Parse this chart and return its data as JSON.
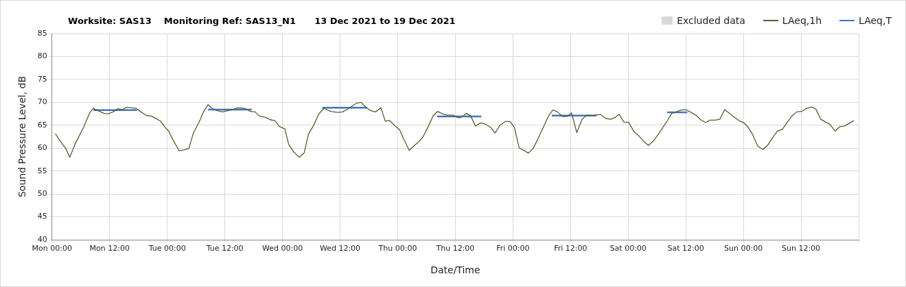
{
  "chart_data": {
    "type": "line",
    "title": "Worksite: SAS13    Monitoring Ref: SAS13_N1      13 Dec 2021 to 19 Dec 2021",
    "xlabel": "Date/Time",
    "ylabel": "Sound Pressure Level, dB",
    "xlim": [
      "2021-12-13T00:00",
      "2021-12-20T00:00"
    ],
    "ylim": [
      40,
      85
    ],
    "xticks": [
      {
        "value": "2021-12-13T00:00",
        "label": "Mon 00:00"
      },
      {
        "value": "2021-12-13T12:00",
        "label": "Mon 12:00"
      },
      {
        "value": "2021-12-14T00:00",
        "label": "Tue 00:00"
      },
      {
        "value": "2021-12-14T12:00",
        "label": "Tue 12:00"
      },
      {
        "value": "2021-12-15T00:00",
        "label": "Wed 00:00"
      },
      {
        "value": "2021-12-15T12:00",
        "label": "Wed 12:00"
      },
      {
        "value": "2021-12-16T00:00",
        "label": "Thu 00:00"
      },
      {
        "value": "2021-12-16T12:00",
        "label": "Thu 12:00"
      },
      {
        "value": "2021-12-17T00:00",
        "label": "Fri 00:00"
      },
      {
        "value": "2021-12-17T12:00",
        "label": "Fri 12:00"
      },
      {
        "value": "2021-12-18T00:00",
        "label": "Sat 00:00"
      },
      {
        "value": "2021-12-18T12:00",
        "label": "Sat 12:00"
      },
      {
        "value": "2021-12-19T00:00",
        "label": "Sun 00:00"
      },
      {
        "value": "2021-12-19T12:00",
        "label": "Sun 12:00"
      },
      {
        "value": "2021-12-20T00:00",
        "label": null
      }
    ],
    "yticks": [
      40,
      45,
      50,
      55,
      60,
      65,
      70,
      75,
      80,
      85
    ],
    "grid": true,
    "legend": "top right",
    "marker": "none",
    "line_style": "solid",
    "series": [
      {
        "name": "Excluded data",
        "type": "area",
        "color": "#d9d9d9"
      },
      {
        "name": "LAeq,1h",
        "color": "#4f6228",
        "x": [
          "2021-12-13T00:42",
          "2021-12-13T01:48",
          "2021-12-13T02:48",
          "2021-12-13T03:42",
          "2021-12-13T04:54",
          "2021-12-13T06:36",
          "2021-12-13T07:48",
          "2021-12-13T08:36",
          "2021-12-13T09:30",
          "2021-12-13T10:48",
          "2021-12-13T11:42",
          "2021-12-13T12:42",
          "2021-12-13T13:42",
          "2021-12-13T14:36",
          "2021-12-13T15:36",
          "2021-12-13T17:30",
          "2021-12-13T18:30",
          "2021-12-13T19:42",
          "2021-12-13T20:42",
          "2021-12-13T21:42",
          "2021-12-13T22:36",
          "2021-12-13T23:36",
          "2021-12-14T00:18",
          "2021-12-14T01:24",
          "2021-12-14T02:30",
          "2021-12-14T03:30",
          "2021-12-14T04:30",
          "2021-12-14T05:24",
          "2021-12-14T06:36",
          "2021-12-14T07:36",
          "2021-12-14T08:30",
          "2021-12-14T09:18",
          "2021-12-14T10:18",
          "2021-12-14T11:30",
          "2021-12-14T12:42",
          "2021-12-14T13:42",
          "2021-12-14T14:36",
          "2021-12-14T16:06",
          "2021-12-14T17:18",
          "2021-12-14T18:18",
          "2021-12-14T19:12",
          "2021-12-14T20:30",
          "2021-12-14T21:24",
          "2021-12-14T22:24",
          "2021-12-14T23:24",
          "2021-12-15T00:30",
          "2021-12-15T01:18",
          "2021-12-15T02:18",
          "2021-12-15T03:30",
          "2021-12-15T04:30",
          "2021-12-15T05:24",
          "2021-12-15T06:24",
          "2021-12-15T07:36",
          "2021-12-15T08:36",
          "2021-12-15T10:00",
          "2021-12-15T11:30",
          "2021-12-15T12:30",
          "2021-12-15T13:42",
          "2021-12-15T15:24",
          "2021-12-15T16:24",
          "2021-12-15T17:18",
          "2021-12-15T18:18",
          "2021-12-15T19:24",
          "2021-12-15T20:30",
          "2021-12-15T21:24",
          "2021-12-15T22:18",
          "2021-12-15T23:24",
          "2021-12-16T00:24",
          "2021-12-16T01:24",
          "2021-12-16T02:24",
          "2021-12-16T03:30",
          "2021-12-16T04:30",
          "2021-12-16T05:18",
          "2021-12-16T06:24",
          "2021-12-16T07:24",
          "2021-12-16T08:18",
          "2021-12-16T09:18",
          "2021-12-16T10:18",
          "2021-12-16T11:30",
          "2021-12-16T12:42",
          "2021-12-16T13:24",
          "2021-12-16T14:18",
          "2021-12-16T15:12",
          "2021-12-16T16:12",
          "2021-12-16T17:12",
          "2021-12-16T18:06",
          "2021-12-16T19:18",
          "2021-12-16T20:18",
          "2021-12-16T21:18",
          "2021-12-16T22:24",
          "2021-12-16T23:24",
          "2021-12-17T00:18",
          "2021-12-17T01:18",
          "2021-12-17T02:18",
          "2021-12-17T03:12",
          "2021-12-17T04:12",
          "2021-12-17T05:12",
          "2021-12-17T06:24",
          "2021-12-17T07:24",
          "2021-12-17T08:18",
          "2021-12-17T09:18",
          "2021-12-17T10:18",
          "2021-12-17T11:18",
          "2021-12-17T12:12",
          "2021-12-17T13:18",
          "2021-12-17T14:24",
          "2021-12-17T15:24",
          "2021-12-17T16:36",
          "2021-12-17T17:42",
          "2021-12-17T18:18",
          "2021-12-17T19:18",
          "2021-12-17T20:24",
          "2021-12-17T21:18",
          "2021-12-17T22:06",
          "2021-12-17T23:06",
          "2021-12-18T00:06",
          "2021-12-18T01:12",
          "2021-12-18T02:18",
          "2021-12-18T03:12",
          "2021-12-18T04:12",
          "2021-12-18T05:12",
          "2021-12-18T06:12",
          "2021-12-18T07:06",
          "2021-12-18T08:06",
          "2021-12-18T09:06",
          "2021-12-18T10:00",
          "2021-12-18T11:00",
          "2021-12-18T12:00",
          "2021-12-18T12:54",
          "2021-12-18T14:06",
          "2021-12-18T15:06",
          "2021-12-18T16:06",
          "2021-12-18T17:06",
          "2021-12-18T18:06",
          "2021-12-18T19:06",
          "2021-12-18T20:06",
          "2021-12-18T21:12",
          "2021-12-18T22:12",
          "2021-12-18T23:06",
          "2021-12-19T00:06",
          "2021-12-19T00:54",
          "2021-12-19T01:48",
          "2021-12-19T03:00",
          "2021-12-19T04:06",
          "2021-12-19T05:06",
          "2021-12-19T06:06",
          "2021-12-19T07:06",
          "2021-12-19T08:06",
          "2021-12-19T09:06",
          "2021-12-19T10:06",
          "2021-12-19T11:06",
          "2021-12-19T12:06",
          "2021-12-19T13:00",
          "2021-12-19T14:12",
          "2021-12-19T15:06",
          "2021-12-19T16:06",
          "2021-12-19T17:06",
          "2021-12-19T18:00",
          "2021-12-19T19:06",
          "2021-12-19T20:06",
          "2021-12-19T21:00",
          "2021-12-19T22:00",
          "2021-12-19T23:00"
        ],
        "values": [
          63.1,
          61.4,
          60.0,
          58.0,
          61.1,
          64.6,
          67.6,
          68.7,
          68.2,
          67.6,
          67.5,
          67.9,
          68.6,
          68.4,
          68.9,
          68.7,
          67.9,
          67.1,
          67.0,
          66.4,
          65.9,
          64.5,
          63.7,
          61.4,
          59.4,
          59.6,
          59.9,
          63.2,
          65.6,
          68.0,
          69.5,
          68.7,
          68.2,
          67.9,
          68.2,
          68.4,
          68.8,
          68.7,
          68.0,
          67.9,
          67.0,
          66.7,
          66.2,
          66.0,
          64.7,
          64.2,
          60.8,
          59.2,
          58.0,
          58.9,
          63.0,
          64.8,
          67.5,
          68.7,
          68.0,
          67.8,
          67.9,
          68.6,
          69.8,
          70.0,
          69.0,
          68.2,
          67.9,
          68.8,
          65.9,
          66.0,
          64.9,
          64.0,
          61.6,
          59.5,
          60.6,
          61.5,
          62.5,
          64.8,
          67.1,
          68.0,
          67.5,
          67.2,
          67.2,
          66.6,
          66.8,
          67.6,
          67.0,
          64.8,
          65.5,
          65.3,
          64.6,
          63.3,
          65.0,
          65.8,
          65.8,
          64.5,
          60.0,
          59.5,
          58.9,
          59.9,
          62.0,
          64.7,
          67.0,
          68.3,
          67.9,
          66.9,
          66.9,
          67.7,
          63.4,
          66.3,
          67.2,
          67.1,
          67.3,
          67.3,
          66.5,
          66.3,
          66.7,
          67.4,
          65.7,
          65.6,
          63.6,
          62.6,
          61.5,
          60.6,
          61.5,
          62.9,
          64.3,
          65.9,
          67.6,
          67.9,
          68.3,
          68.4,
          67.9,
          67.2,
          66.2,
          65.6,
          66.1,
          66.1,
          66.3,
          68.4,
          67.5,
          66.7,
          66.0,
          65.5,
          64.7,
          63.2,
          60.4,
          59.7,
          60.7,
          62.3,
          63.7,
          64.1,
          65.6,
          67.0,
          67.9,
          68.0,
          68.6,
          69.0,
          68.5,
          66.3,
          65.7,
          65.2,
          63.7,
          64.7,
          64.8,
          65.4,
          66.0
        ]
      },
      {
        "name": "LAeq,T",
        "color": "#4472c4",
        "x": [
          "2021-12-13T08:36",
          "2021-12-13T17:42"
        ],
        "values": [
          68.3,
          68.3
        ]
      },
      {
        "color": "#4472c4",
        "x": [
          "2021-12-14T08:30",
          "2021-12-14T17:36"
        ],
        "values": [
          68.4,
          68.4
        ]
      },
      {
        "color": "#4472c4",
        "x": [
          "2021-12-15T08:18",
          "2021-12-15T17:36"
        ],
        "values": [
          68.8,
          68.8
        ]
      },
      {
        "color": "#4472c4",
        "x": [
          "2021-12-16T08:12",
          "2021-12-16T17:24"
        ],
        "values": [
          66.9,
          66.9
        ]
      },
      {
        "color": "#4472c4",
        "x": [
          "2021-12-17T08:06",
          "2021-12-17T17:24"
        ],
        "values": [
          67.1,
          67.1
        ]
      },
      {
        "color": "#4472c4",
        "x": [
          "2021-12-18T08:06",
          "2021-12-18T12:18"
        ],
        "values": [
          67.8,
          67.8
        ]
      }
    ]
  }
}
